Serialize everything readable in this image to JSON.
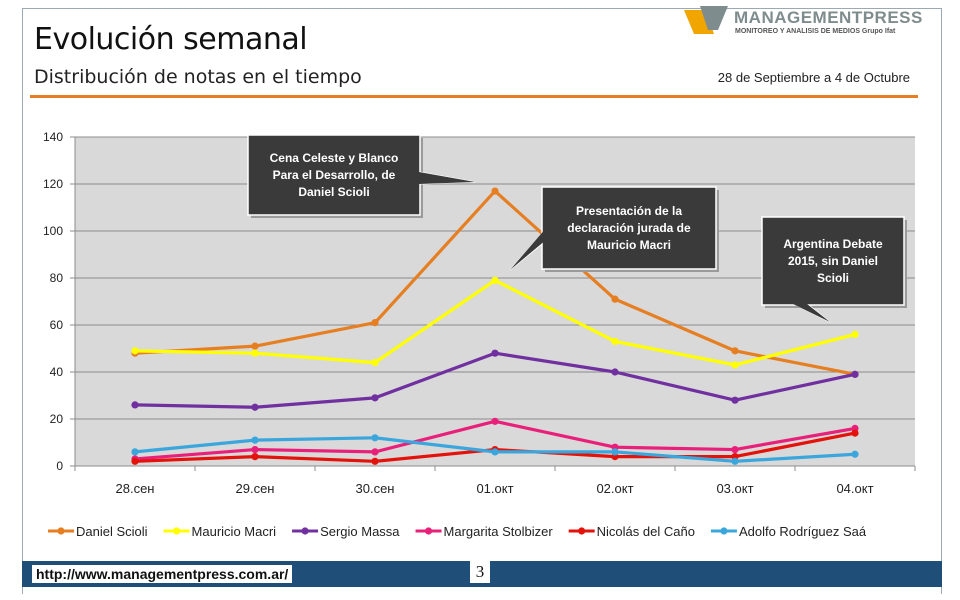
{
  "slide": {
    "title": "Evolución semanal",
    "subtitle": "Distribución de notas en el tiempo",
    "date_range": "28 de Septiembre a 4 de Octubre",
    "logo_name": "MANAGEMENTPRESS",
    "logo_tagline": "MONITOREO Y ANALISIS DE MEDIOS Grupo Ifat",
    "footer_url": "http://www.managementpress.com.ar/",
    "page_number": "3"
  },
  "colors": {
    "accent_orange": "#e67e22",
    "footer_bar": "#1f4e79",
    "plot_background": "#d9d9d9",
    "callout_fill": "#3a3a3a"
  },
  "chart_data": {
    "type": "line",
    "categories": [
      "28.сен",
      "29.сен",
      "30.сен",
      "01.окт",
      "02.окт",
      "03.окт",
      "04.окт"
    ],
    "ylim": [
      0,
      140
    ],
    "yticks": [
      0,
      20,
      40,
      60,
      80,
      100,
      120,
      140
    ],
    "grid": true,
    "legend_position": "bottom",
    "series": [
      {
        "name": "Daniel Scioli",
        "color": "#e67e22",
        "values": [
          48,
          51,
          61,
          117,
          71,
          49,
          39
        ]
      },
      {
        "name": "Mauricio Macri",
        "color": "#ffff00",
        "values": [
          49,
          48,
          44,
          79,
          53,
          43,
          56
        ]
      },
      {
        "name": "Sergio Massa",
        "color": "#7030a0",
        "values": [
          26,
          25,
          29,
          48,
          40,
          28,
          39
        ]
      },
      {
        "name": "Margarita Stolbizer",
        "color": "#e8207a",
        "values": [
          3,
          7,
          6,
          19,
          8,
          7,
          16
        ]
      },
      {
        "name": "Nicolás del Caño",
        "color": "#e3120b",
        "values": [
          2,
          4,
          2,
          7,
          4,
          4,
          14
        ]
      },
      {
        "name": "Adolfo Rodríguez Saá",
        "color": "#3aa6dc",
        "values": [
          6,
          11,
          12,
          6,
          6,
          2,
          5
        ]
      }
    ],
    "annotations": [
      {
        "text": "Cena Celeste y Blanco Para el Desarrollo, de Daniel Scioli",
        "category": "01.окт",
        "value": 117
      },
      {
        "text": "Presentación de la declaración jurada de Mauricio Macri",
        "category": "01.окт",
        "value": 83
      },
      {
        "text": "Argentina Debate 2015, sin Daniel Scioli",
        "category": "04.окт",
        "value": 60
      }
    ]
  }
}
